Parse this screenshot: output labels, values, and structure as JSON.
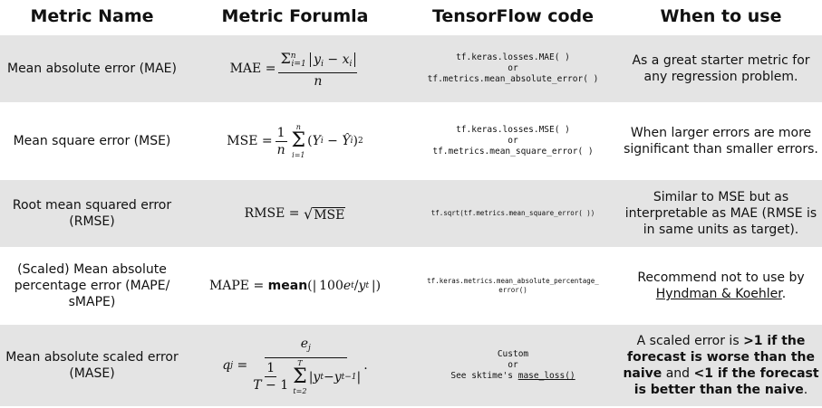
{
  "headers": {
    "metric_name": "Metric Name",
    "metric_formula": "Metric Forumla",
    "tensorflow_code": "TensorFlow code",
    "when_to_use": "When to use"
  },
  "rows": [
    {
      "name": "Mean absolute error (MAE)",
      "formula_lhs": "MAE",
      "code_line1": "tf.keras.losses.MAE( )",
      "code_or": "or",
      "code_line2": "tf.metrics.mean_absolute_error( )",
      "when": "As a great starter metric for any regression problem."
    },
    {
      "name": "Mean square error (MSE)",
      "formula_lhs": "MSE",
      "code_line1": "tf.keras.losses.MSE( )",
      "code_or": "or",
      "code_line2": "tf.metrics.mean_square_error( )",
      "when": "When larger errors are more significant than smaller errors."
    },
    {
      "name": "Root mean squared error (RMSE)",
      "formula_lhs": "RMSE",
      "formula_rad": "MSE",
      "code_line1": "tf.sqrt(tf.metrics.mean_square_error( ))",
      "when": "Similar to MSE but as interpretable as MAE (RMSE is in same units as target)."
    },
    {
      "name": "(Scaled) Mean absolute percentage error (MAPE/ sMAPE)",
      "formula_lhs": "MAPE",
      "formula_fn": "mean",
      "code_line1": "tf.keras.metrics.mean_absolute_percentage_",
      "code_line2": "error()",
      "when_prefix": "Recommend not to use by ",
      "when_link": "Hyndman & Koehler",
      "when_suffix": "."
    },
    {
      "name": "Mean absolute scaled error (MASE)",
      "code_line1": "Custom",
      "code_or": "or",
      "code_prefix": "See sktime's ",
      "code_link": "mase_loss()",
      "when_a": "A scaled error is ",
      "when_b": ">1 if the forecast is worse than the naive",
      "when_c": " and ",
      "when_d": "<1 if the forecast is better than the naive",
      "when_e": "."
    }
  ]
}
